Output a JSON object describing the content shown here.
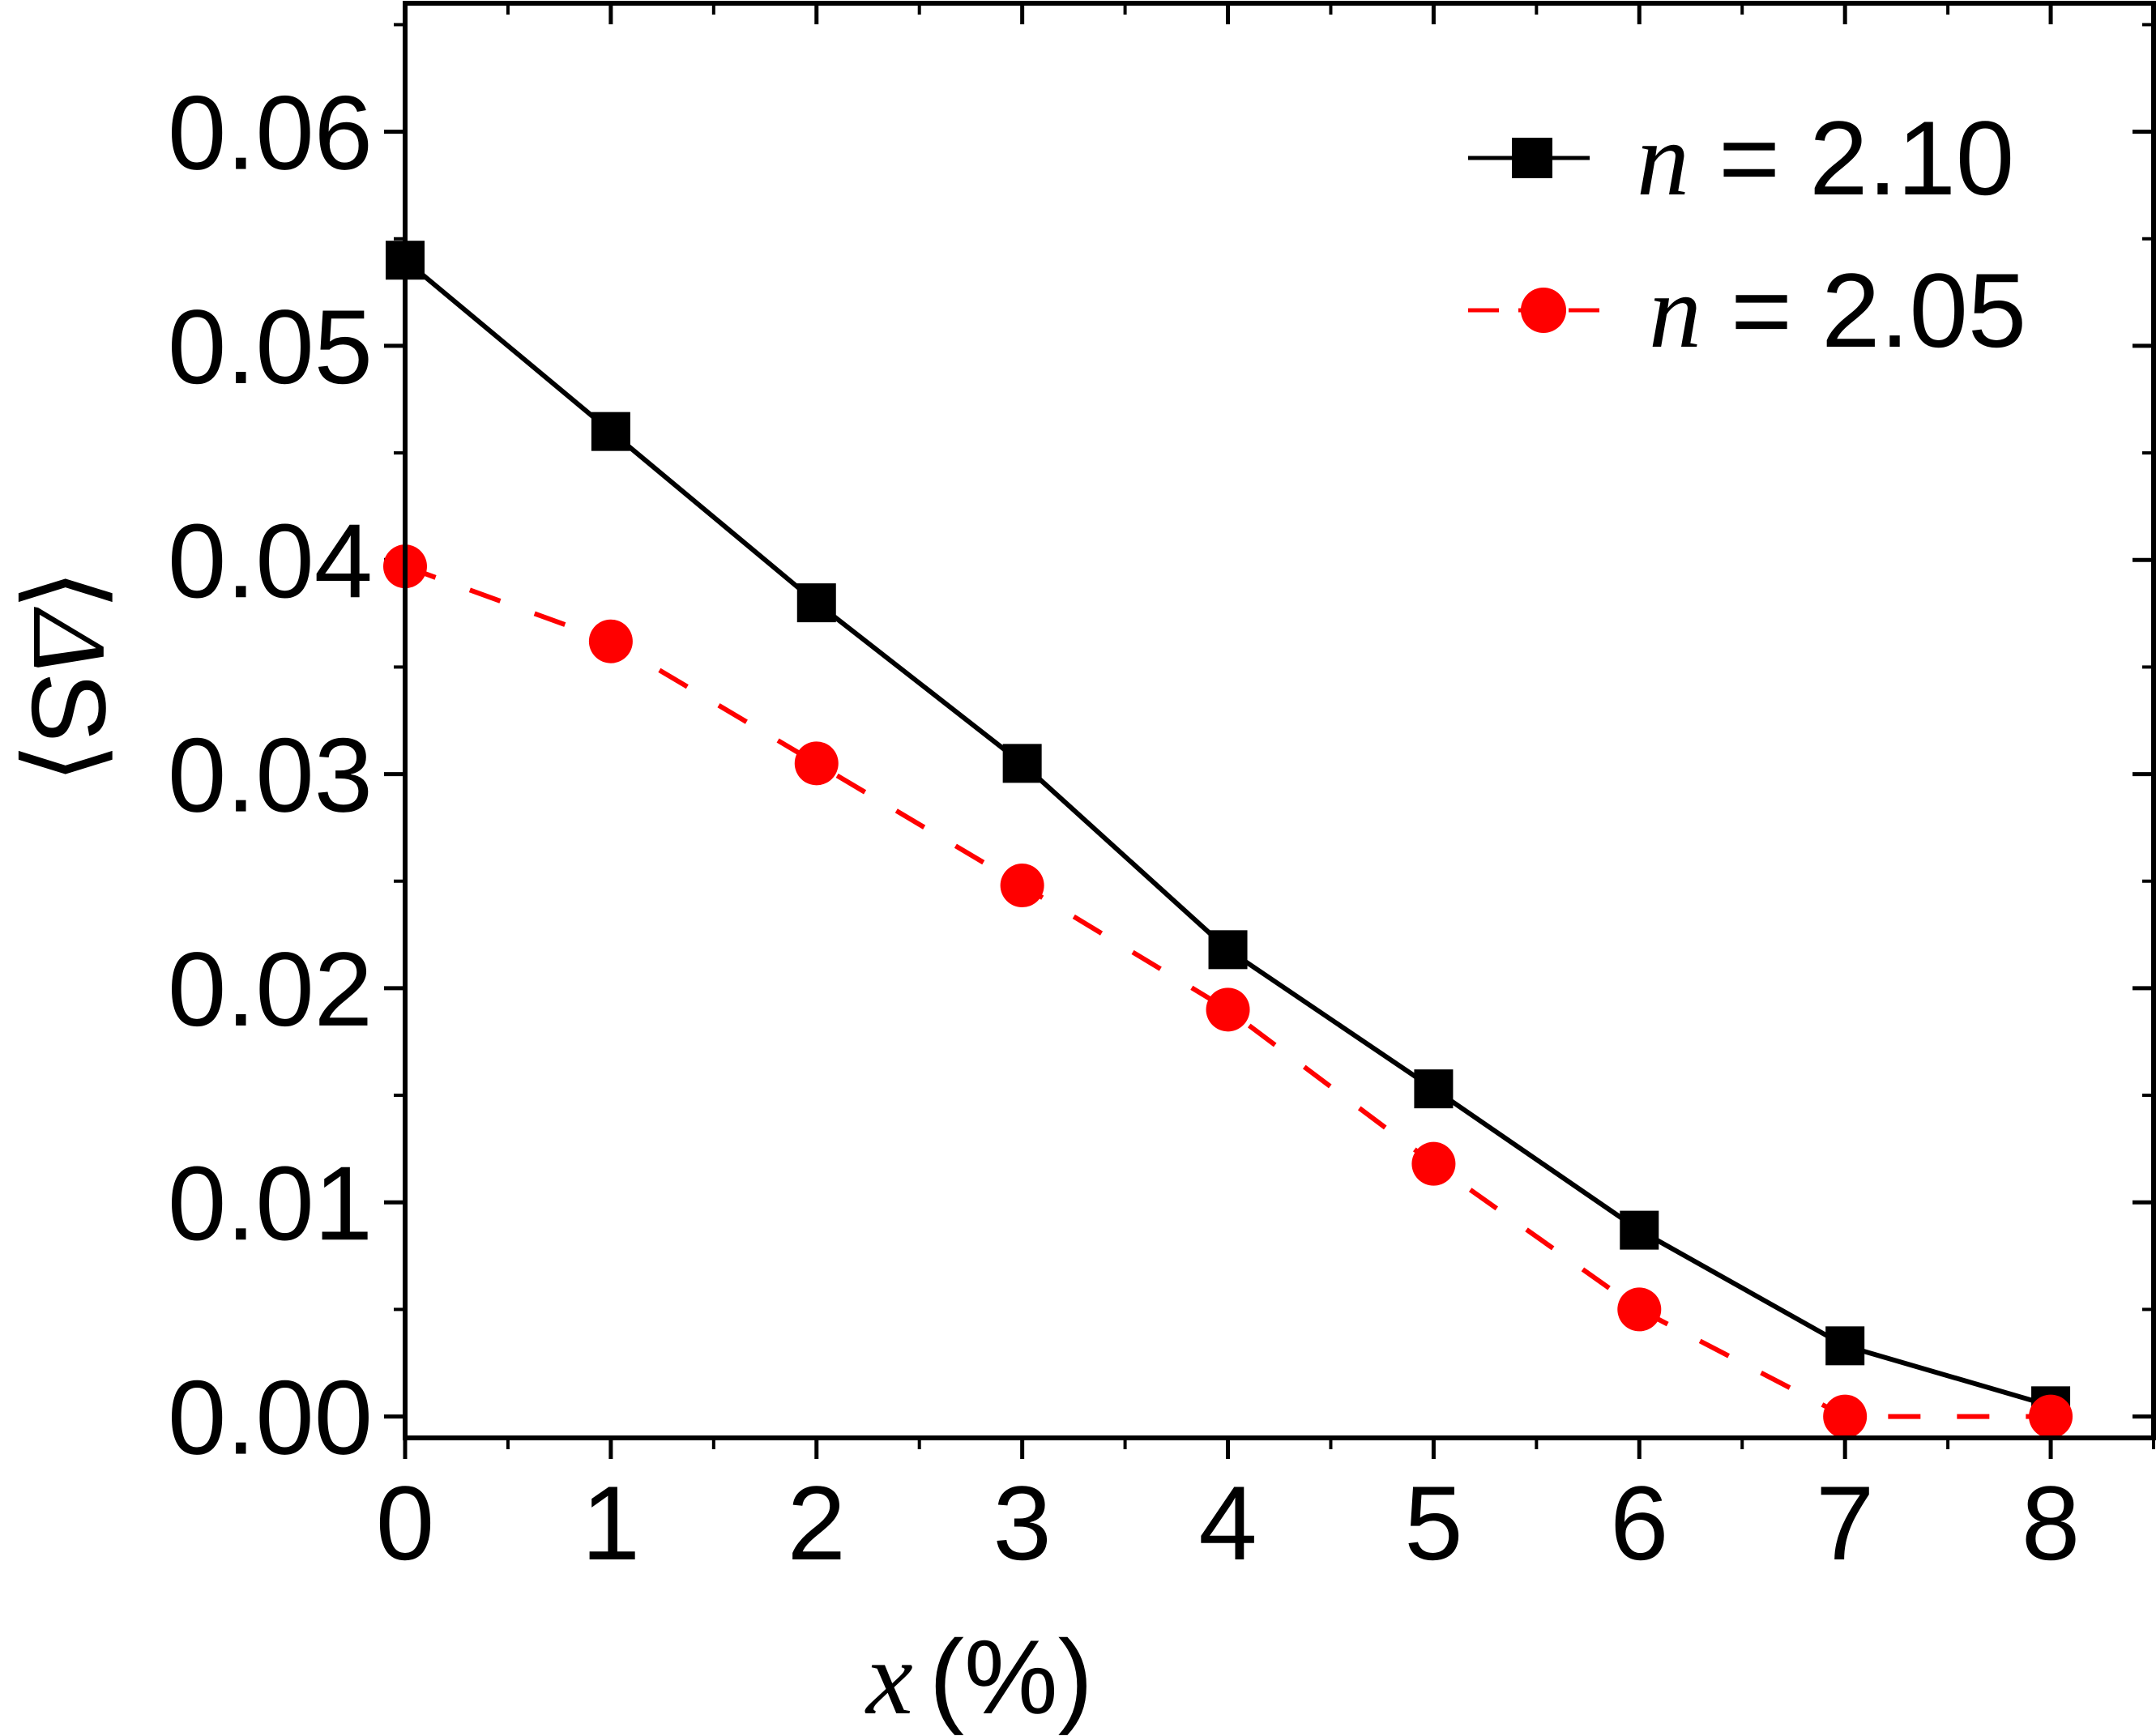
{
  "chart_data": {
    "type": "line",
    "xlabel": {
      "var": "x",
      "unit": "(%)"
    },
    "ylabel": {
      "open": "⟨",
      "symbol": "Δ",
      "sub": "S",
      "close": "⟩"
    },
    "xlim": [
      0,
      8.5
    ],
    "ylim": [
      -0.001,
      0.066
    ],
    "xticks": [
      0,
      1,
      2,
      3,
      4,
      5,
      6,
      7,
      8
    ],
    "xtick_labels": [
      "0",
      "1",
      "2",
      "3",
      "4",
      "5",
      "6",
      "7",
      "8"
    ],
    "yticks": [
      0.0,
      0.01,
      0.02,
      0.03,
      0.04,
      0.05,
      0.06
    ],
    "ytick_labels": [
      "0.00",
      "0.01",
      "0.02",
      "0.03",
      "0.04",
      "0.05",
      "0.06"
    ],
    "grid": false,
    "legend_position": "top-right",
    "series": [
      {
        "name": "n = 2.10",
        "name_var": "n",
        "name_rest": " = 2.10",
        "color": "#000000",
        "marker": "square",
        "line_style": "solid",
        "x": [
          0,
          1,
          2,
          3,
          4,
          5,
          6,
          7,
          8
        ],
        "y": [
          0.054,
          0.046,
          0.038,
          0.0305,
          0.0218,
          0.0153,
          0.0087,
          0.0033,
          0.0005
        ]
      },
      {
        "name": "n = 2.05",
        "name_var": "n",
        "name_rest": " = 2.05",
        "color": "#ff0000",
        "marker": "circle",
        "line_style": "dashed",
        "x": [
          0,
          1,
          2,
          3,
          4,
          5,
          6,
          7,
          8
        ],
        "y": [
          0.0397,
          0.0362,
          0.0305,
          0.0248,
          0.019,
          0.0118,
          0.005,
          0.0,
          0.0
        ]
      }
    ]
  }
}
